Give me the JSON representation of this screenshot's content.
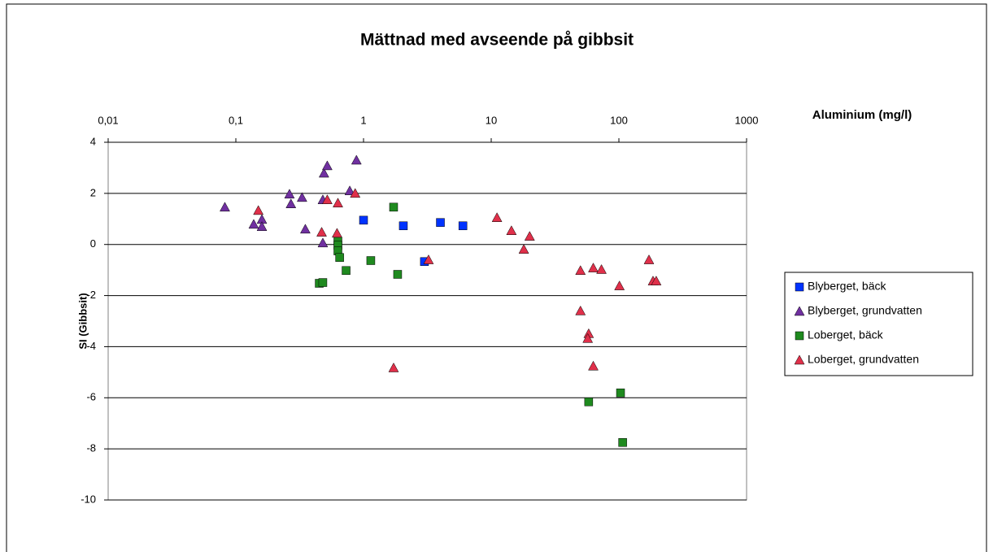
{
  "chart_data": {
    "type": "scatter",
    "title": "Mättnad med avseende på gibbsit",
    "x_label": "Aluminium (mg/l)",
    "y_label": "SI (Gibbsit)",
    "x_log": true,
    "xlim": [
      0.01,
      1000
    ],
    "xticks": [
      {
        "value": 0.01,
        "label": "0,01"
      },
      {
        "value": 0.1,
        "label": "0,1"
      },
      1,
      10,
      100,
      1000
    ],
    "ylim": [
      -10,
      4
    ],
    "yticks": [
      4,
      2,
      0,
      -2,
      -4,
      -6,
      -8,
      -10
    ],
    "grid": true,
    "legend": "right",
    "series": [
      {
        "name": "Blyberget, bäck",
        "color": "#0033ff",
        "marker": "square",
        "x": [
          1,
          2.05,
          4.0,
          6.0,
          3.0
        ],
        "values": [
          0.95,
          0.73,
          0.86,
          0.73,
          -0.67
        ]
      },
      {
        "name": "Blyberget, grundvatten",
        "color": "#7030a0",
        "marker": "triangle",
        "x": [
          0.082,
          0.138,
          0.16,
          0.16,
          0.263,
          0.27,
          0.33,
          0.35,
          0.49,
          0.52,
          0.48,
          0.48,
          0.78,
          0.88
        ],
        "values": [
          1.46,
          0.79,
          0.98,
          0.7,
          1.97,
          1.59,
          1.84,
          0.6,
          2.79,
          3.08,
          1.75,
          0.06,
          2.1,
          3.3
        ]
      },
      {
        "name": "Loberget, bäck",
        "color": "#1f8a1f",
        "marker": "square",
        "x": [
          0.45,
          0.48,
          0.63,
          0.63,
          0.63,
          0.65,
          0.73,
          1.14,
          1.72,
          1.85,
          58,
          103,
          107
        ],
        "values": [
          -1.52,
          -1.49,
          0.13,
          -0.03,
          -0.25,
          -0.51,
          -1.02,
          -0.63,
          1.46,
          -1.17,
          -6.16,
          -5.81,
          -7.75
        ]
      },
      {
        "name": "Loberget, grundvatten",
        "color": "#e0304a",
        "marker": "triangle",
        "x": [
          0.15,
          0.47,
          0.52,
          0.62,
          0.63,
          0.86,
          1.72,
          3.23,
          11.1,
          14.4,
          18,
          20,
          50,
          63,
          73,
          101,
          172,
          185,
          196,
          50,
          58,
          57,
          63
        ],
        "values": [
          1.33,
          0.48,
          1.75,
          0.44,
          1.62,
          2.0,
          -4.83,
          -0.6,
          1.05,
          0.54,
          -0.19,
          0.32,
          -1.02,
          -0.92,
          -0.98,
          -1.62,
          -0.6,
          -1.43,
          -1.43,
          -2.6,
          -3.49,
          -3.68,
          -4.76
        ]
      }
    ]
  }
}
